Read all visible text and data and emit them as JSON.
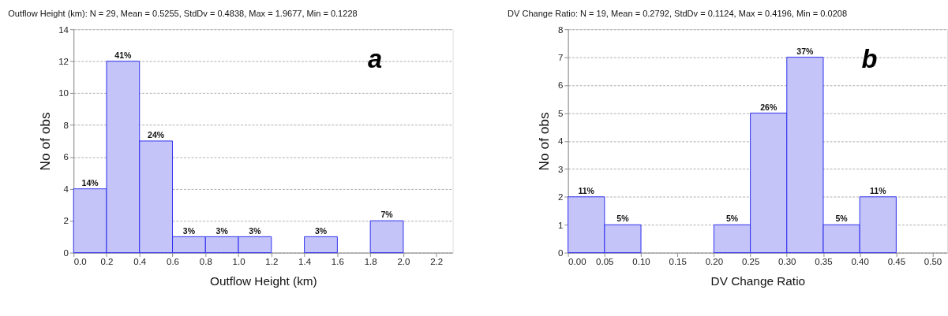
{
  "chart_data": [
    {
      "type": "histogram",
      "title": "Outflow Height (km):   N = 29, Mean = 0.5255, StdDv = 0.4838, Max = 1.9677, Min = 0.1228",
      "xlabel": "Outflow Height (km)",
      "ylabel": "No of obs",
      "bins": [
        0,
        0.2,
        0.4,
        0.6,
        0.8,
        1.0,
        1.2,
        1.4,
        1.6,
        1.8,
        2.0,
        2.2
      ],
      "values": [
        4,
        12,
        7,
        1,
        1,
        1,
        0,
        1,
        0,
        2,
        0
      ],
      "color": "#c4c4f8",
      "xlim": [
        0,
        2.3
      ],
      "xticks": [
        {
          "value": 0,
          "label": "0.0"
        },
        0.2,
        0.4,
        0.6,
        0.8,
        {
          "value": 1,
          "label": "1.0"
        },
        1.2,
        1.4,
        1.6,
        1.8,
        {
          "value": 2,
          "label": "2.0"
        },
        2.2
      ],
      "ylim": [
        0,
        14
      ],
      "yticks": [
        0,
        2,
        4,
        6,
        8,
        10,
        12,
        14
      ],
      "grid": "y",
      "annotations": [
        "a",
        {
          "text": "14%",
          "x": 0.1,
          "y": 4
        },
        {
          "text": "41%",
          "x": 0.3,
          "y": 12
        },
        {
          "text": "24%",
          "x": 0.5,
          "y": 7
        },
        {
          "text": "3%",
          "x": 0.7,
          "y": 1
        },
        {
          "text": "3%",
          "x": 0.9,
          "y": 1
        },
        {
          "text": "3%",
          "x": 1.1,
          "y": 1
        },
        {
          "text": "3%",
          "x": 1.5,
          "y": 1
        },
        {
          "text": "7%",
          "x": 1.9,
          "y": 2
        }
      ]
    },
    {
      "type": "histogram",
      "title": "DV Change Ratio:   N = 19, Mean = 0.2792, StdDv = 0.1124, Max = 0.4196, Min = 0.0208",
      "xlabel": "DV Change Ratio",
      "ylabel": "No of obs",
      "bins": [
        0,
        0.05,
        0.1,
        0.15,
        0.2,
        0.25,
        0.3,
        0.35,
        0.4,
        0.45,
        0.5
      ],
      "values": [
        2,
        1,
        0,
        0,
        1,
        5,
        7,
        1,
        2,
        0
      ],
      "color": "#c4c4f8",
      "xlim": [
        0,
        0.52
      ],
      "xticks": [
        {
          "value": 0,
          "label": "0.00"
        },
        0.05,
        {
          "value": 0.1,
          "label": "0.10"
        },
        0.15,
        {
          "value": 0.2,
          "label": "0.20"
        },
        0.25,
        {
          "value": 0.3,
          "label": "0.30"
        },
        0.35,
        {
          "value": 0.4,
          "label": "0.40"
        },
        0.45,
        {
          "value": 0.5,
          "label": "0.50"
        }
      ],
      "ylim": [
        0,
        8
      ],
      "yticks": [
        0,
        1,
        2,
        3,
        4,
        5,
        6,
        7,
        8
      ],
      "grid": "y",
      "annotations": [
        "b",
        {
          "text": "11%",
          "x": 0.025,
          "y": 2
        },
        {
          "text": "5%",
          "x": 0.075,
          "y": 1
        },
        {
          "text": "5%",
          "x": 0.225,
          "y": 1
        },
        {
          "text": "26%",
          "x": 0.275,
          "y": 5
        },
        {
          "text": "37%",
          "x": 0.325,
          "y": 7
        },
        {
          "text": "5%",
          "x": 0.375,
          "y": 1
        },
        {
          "text": "11%",
          "x": 0.425,
          "y": 2
        }
      ]
    }
  ]
}
